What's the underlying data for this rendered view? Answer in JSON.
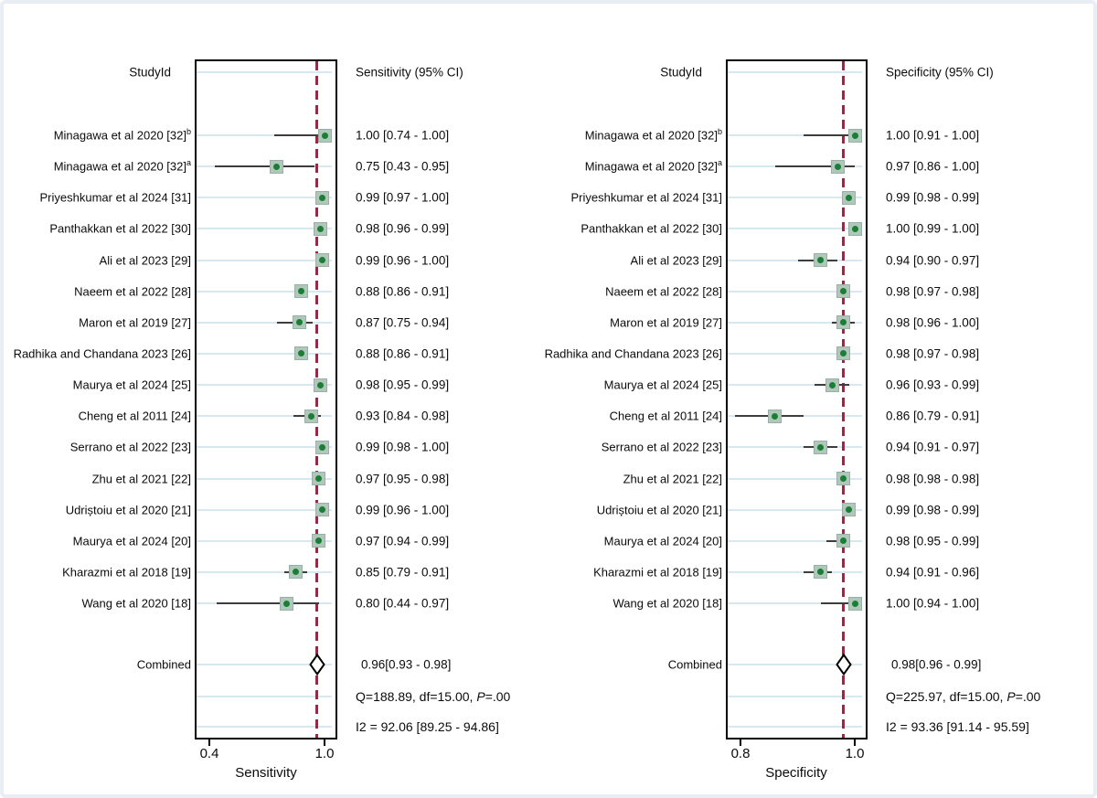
{
  "page": {
    "background": "#ffffff",
    "frame_color": "#e9eef4"
  },
  "colors": {
    "marker_fill": "#b2c7bb",
    "marker_border": "#97b2a5",
    "marker_dot": "#1a7e35",
    "ci_line": "#3d3d3d",
    "reference_line": "#c2143e",
    "grid_line": "#d8e8f0",
    "box_border": "#000000",
    "text": "#0b0b0b"
  },
  "chart_data": {
    "type": "forest",
    "description": "Paired forest plots of diagnostic meta-analysis: per-study sensitivity and specificity with 95% CIs, combined estimates (diamonds), heterogeneity statistics, and dashed reference line at the combined estimate.",
    "panels": [
      {
        "header_study": "StudyId",
        "header_ci": "Sensitivity (95% CI)",
        "axis": {
          "title": "Sensitivity",
          "min": 0.4,
          "max": 1.0,
          "tick_labels": [
            "0.4",
            "1.0"
          ]
        },
        "studies": [
          {
            "label": "Minagawa et al 2020 [32]",
            "sup": "b",
            "estimate": 1.0,
            "ci_low": 0.74,
            "ci_high": 1.0,
            "ci_text": "1.00 [0.74 - 1.00]"
          },
          {
            "label": "Minagawa et al 2020 [32]",
            "sup": "a",
            "estimate": 0.75,
            "ci_low": 0.43,
            "ci_high": 0.95,
            "ci_text": "0.75 [0.43 - 0.95]"
          },
          {
            "label": "Priyeshkumar et al 2024 [31]",
            "sup": "",
            "estimate": 0.99,
            "ci_low": 0.97,
            "ci_high": 1.0,
            "ci_text": "0.99 [0.97 - 1.00]"
          },
          {
            "label": "Panthakkan et al 2022 [30]",
            "sup": "",
            "estimate": 0.98,
            "ci_low": 0.96,
            "ci_high": 0.99,
            "ci_text": "0.98 [0.96 - 0.99]"
          },
          {
            "label": "Ali et al 2023 [29]",
            "sup": "",
            "estimate": 0.99,
            "ci_low": 0.96,
            "ci_high": 1.0,
            "ci_text": "0.99 [0.96 - 1.00]"
          },
          {
            "label": "Naeem et al 2022 [28]",
            "sup": "",
            "estimate": 0.88,
            "ci_low": 0.86,
            "ci_high": 0.91,
            "ci_text": "0.88 [0.86 - 0.91]"
          },
          {
            "label": "Maron et al 2019 [27]",
            "sup": "",
            "estimate": 0.87,
            "ci_low": 0.75,
            "ci_high": 0.94,
            "ci_text": "0.87 [0.75 - 0.94]"
          },
          {
            "label": "Radhika and Chandana 2023 [26]",
            "sup": "",
            "estimate": 0.88,
            "ci_low": 0.86,
            "ci_high": 0.91,
            "ci_text": "0.88 [0.86 - 0.91]"
          },
          {
            "label": "Maurya et al 2024 [25]",
            "sup": "",
            "estimate": 0.98,
            "ci_low": 0.95,
            "ci_high": 0.99,
            "ci_text": "0.98 [0.95 - 0.99]"
          },
          {
            "label": "Cheng et al 2011 [24]",
            "sup": "",
            "estimate": 0.93,
            "ci_low": 0.84,
            "ci_high": 0.98,
            "ci_text": "0.93 [0.84 - 0.98]"
          },
          {
            "label": "Serrano et al 2022 [23]",
            "sup": "",
            "estimate": 0.99,
            "ci_low": 0.98,
            "ci_high": 1.0,
            "ci_text": "0.99 [0.98 - 1.00]"
          },
          {
            "label": "Zhu et al 2021 [22]",
            "sup": "",
            "estimate": 0.97,
            "ci_low": 0.95,
            "ci_high": 0.98,
            "ci_text": "0.97 [0.95 - 0.98]"
          },
          {
            "label": "Udriștoiu et al 2020 [21]",
            "sup": "",
            "estimate": 0.99,
            "ci_low": 0.96,
            "ci_high": 1.0,
            "ci_text": "0.99 [0.96 - 1.00]"
          },
          {
            "label": "Maurya et al 2024 [20]",
            "sup": "",
            "estimate": 0.97,
            "ci_low": 0.94,
            "ci_high": 0.99,
            "ci_text": "0.97 [0.94 - 0.99]"
          },
          {
            "label": "Kharazmi et al 2018 [19]",
            "sup": "",
            "estimate": 0.85,
            "ci_low": 0.79,
            "ci_high": 0.91,
            "ci_text": "0.85 [0.79 - 0.91]"
          },
          {
            "label": "Wang et al 2020 [18]",
            "sup": "",
            "estimate": 0.8,
            "ci_low": 0.44,
            "ci_high": 0.97,
            "ci_text": "0.80 [0.44 - 0.97]"
          }
        ],
        "combined": {
          "label": "Combined",
          "estimate": 0.96,
          "ci_low": 0.93,
          "ci_high": 0.98,
          "ci_text": "0.96[0.93 - 0.98]"
        },
        "heterogeneity": {
          "q_prefix": "Q=188.89, df=15.00, ",
          "p_italic": "P",
          "p_suffix": "=.00",
          "i2_text": "I2 = 92.06 [89.25 - 94.86]"
        }
      },
      {
        "header_study": "StudyId",
        "header_ci": "Specificity (95% CI)",
        "axis": {
          "title": "Specificity",
          "min": 0.8,
          "max": 1.0,
          "tick_labels": [
            "0.8",
            "1.0"
          ]
        },
        "studies": [
          {
            "label": "Minagawa et al 2020 [32]",
            "sup": "b",
            "estimate": 1.0,
            "ci_low": 0.91,
            "ci_high": 1.0,
            "ci_text": "1.00 [0.91 - 1.00]"
          },
          {
            "label": "Minagawa et al 2020 [32]",
            "sup": "a",
            "estimate": 0.97,
            "ci_low": 0.86,
            "ci_high": 1.0,
            "ci_text": "0.97 [0.86 - 1.00]"
          },
          {
            "label": "Priyeshkumar et al 2024 [31]",
            "sup": "",
            "estimate": 0.99,
            "ci_low": 0.98,
            "ci_high": 0.99,
            "ci_text": "0.99 [0.98 - 0.99]"
          },
          {
            "label": "Panthakkan et al 2022 [30]",
            "sup": "",
            "estimate": 1.0,
            "ci_low": 0.99,
            "ci_high": 1.0,
            "ci_text": "1.00 [0.99 - 1.00]"
          },
          {
            "label": "Ali et al 2023 [29]",
            "sup": "",
            "estimate": 0.94,
            "ci_low": 0.9,
            "ci_high": 0.97,
            "ci_text": "0.94 [0.90 - 0.97]"
          },
          {
            "label": "Naeem et al 2022 [28]",
            "sup": "",
            "estimate": 0.98,
            "ci_low": 0.97,
            "ci_high": 0.98,
            "ci_text": "0.98 [0.97 - 0.98]"
          },
          {
            "label": "Maron et al 2019 [27]",
            "sup": "",
            "estimate": 0.98,
            "ci_low": 0.96,
            "ci_high": 1.0,
            "ci_text": "0.98 [0.96 - 1.00]"
          },
          {
            "label": "Radhika and Chandana 2023 [26]",
            "sup": "",
            "estimate": 0.98,
            "ci_low": 0.97,
            "ci_high": 0.98,
            "ci_text": "0.98 [0.97 - 0.98]"
          },
          {
            "label": "Maurya et al 2024 [25]",
            "sup": "",
            "estimate": 0.96,
            "ci_low": 0.93,
            "ci_high": 0.99,
            "ci_text": "0.96 [0.93 - 0.99]"
          },
          {
            "label": "Cheng et al 2011 [24]",
            "sup": "",
            "estimate": 0.86,
            "ci_low": 0.79,
            "ci_high": 0.91,
            "ci_text": "0.86 [0.79 - 0.91]"
          },
          {
            "label": "Serrano et al 2022 [23]",
            "sup": "",
            "estimate": 0.94,
            "ci_low": 0.91,
            "ci_high": 0.97,
            "ci_text": "0.94 [0.91 - 0.97]"
          },
          {
            "label": "Zhu et al 2021 [22]",
            "sup": "",
            "estimate": 0.98,
            "ci_low": 0.98,
            "ci_high": 0.98,
            "ci_text": "0.98 [0.98 - 0.98]"
          },
          {
            "label": "Udriștoiu et al 2020 [21]",
            "sup": "",
            "estimate": 0.99,
            "ci_low": 0.98,
            "ci_high": 0.99,
            "ci_text": "0.99 [0.98 - 0.99]"
          },
          {
            "label": "Maurya et al 2024 [20]",
            "sup": "",
            "estimate": 0.98,
            "ci_low": 0.95,
            "ci_high": 0.99,
            "ci_text": "0.98 [0.95 - 0.99]"
          },
          {
            "label": "Kharazmi et al 2018 [19]",
            "sup": "",
            "estimate": 0.94,
            "ci_low": 0.91,
            "ci_high": 0.96,
            "ci_text": "0.94 [0.91 - 0.96]"
          },
          {
            "label": "Wang et al 2020 [18]",
            "sup": "",
            "estimate": 1.0,
            "ci_low": 0.94,
            "ci_high": 1.0,
            "ci_text": "1.00 [0.94 - 1.00]"
          }
        ],
        "combined": {
          "label": "Combined",
          "estimate": 0.98,
          "ci_low": 0.96,
          "ci_high": 0.99,
          "ci_text": "0.98[0.96 - 0.99]"
        },
        "heterogeneity": {
          "q_prefix": "Q=225.97, df=15.00, ",
          "p_italic": "P",
          "p_suffix": "=.00",
          "i2_text": "I2 = 93.36 [91.14 - 95.59]"
        }
      }
    ]
  }
}
